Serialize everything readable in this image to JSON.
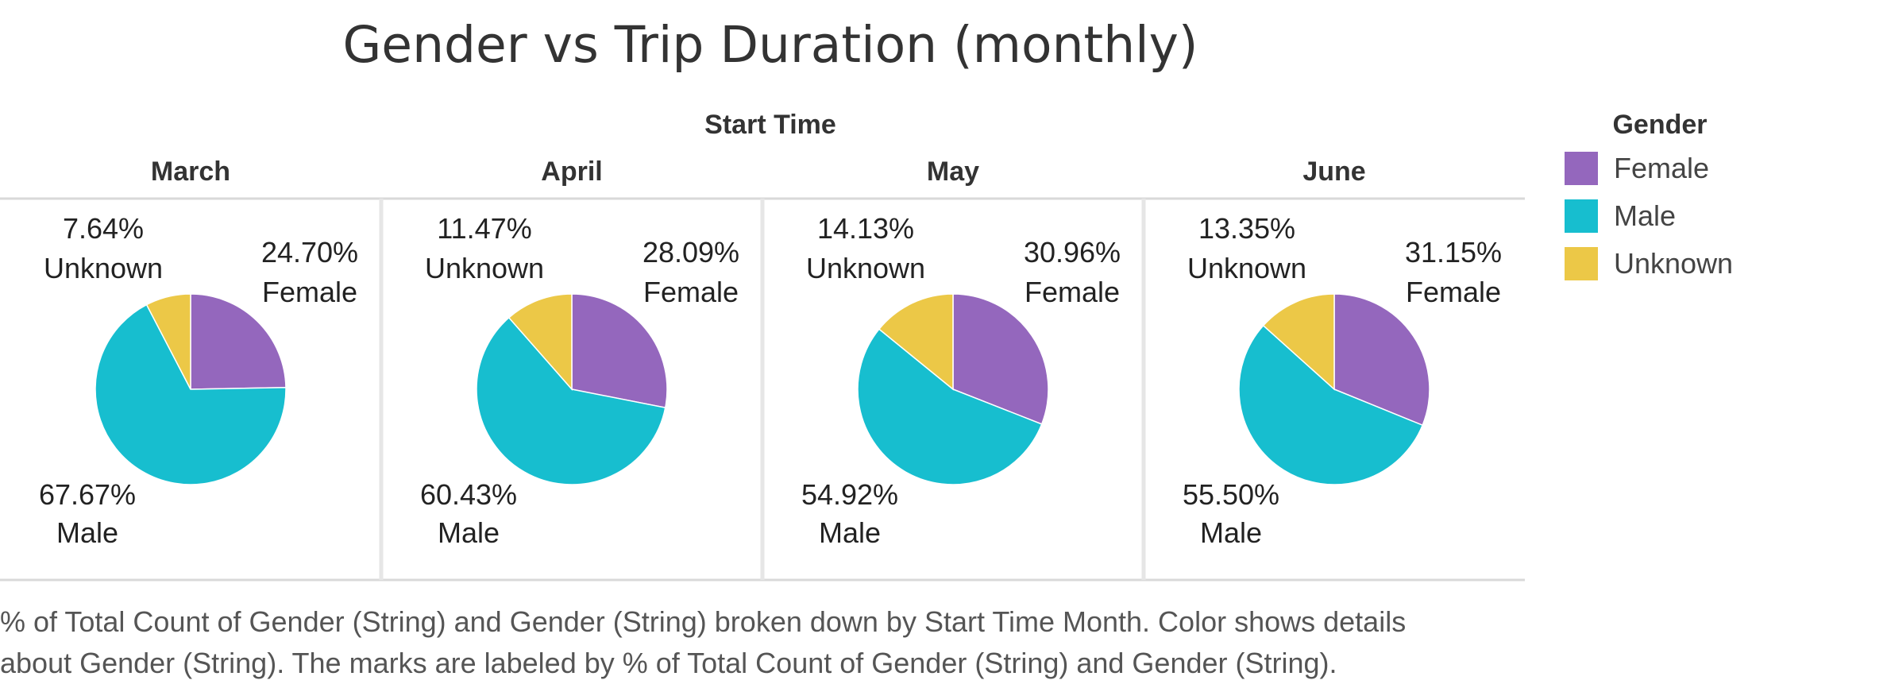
{
  "chart_data": {
    "type": "pie",
    "title": "Gender vs Trip Duration (monthly)",
    "column_header": "Start Time",
    "legend_title": "Gender",
    "legend": [
      {
        "name": "Female",
        "color": "#9467bd"
      },
      {
        "name": "Male",
        "color": "#17becf"
      },
      {
        "name": "Unknown",
        "color": "#ecc847"
      }
    ],
    "panels": [
      {
        "month": "March",
        "slices": [
          {
            "category": "Female",
            "value": 24.7,
            "label_value": "24.70%"
          },
          {
            "category": "Male",
            "value": 67.67,
            "label_value": "67.67%"
          },
          {
            "category": "Unknown",
            "value": 7.64,
            "label_value": "7.64%"
          }
        ]
      },
      {
        "month": "April",
        "slices": [
          {
            "category": "Female",
            "value": 28.09,
            "label_value": "28.09%"
          },
          {
            "category": "Male",
            "value": 60.43,
            "label_value": "60.43%"
          },
          {
            "category": "Unknown",
            "value": 11.47,
            "label_value": "11.47%"
          }
        ]
      },
      {
        "month": "May",
        "slices": [
          {
            "category": "Female",
            "value": 30.96,
            "label_value": "30.96%"
          },
          {
            "category": "Male",
            "value": 54.92,
            "label_value": "54.92%"
          },
          {
            "category": "Unknown",
            "value": 14.13,
            "label_value": "14.13%"
          }
        ]
      },
      {
        "month": "June",
        "slices": [
          {
            "category": "Female",
            "value": 31.15,
            "label_value": "31.15%"
          },
          {
            "category": "Male",
            "value": 55.5,
            "label_value": "55.50%"
          },
          {
            "category": "Unknown",
            "value": 13.35,
            "label_value": "13.35%"
          }
        ]
      }
    ]
  },
  "caption": {
    "line1": "% of Total Count of Gender (String) and Gender (String) broken down by Start Time Month.  Color shows details",
    "line2": "about Gender (String).  The marks are labeled by % of Total Count of Gender (String) and Gender (String)."
  }
}
